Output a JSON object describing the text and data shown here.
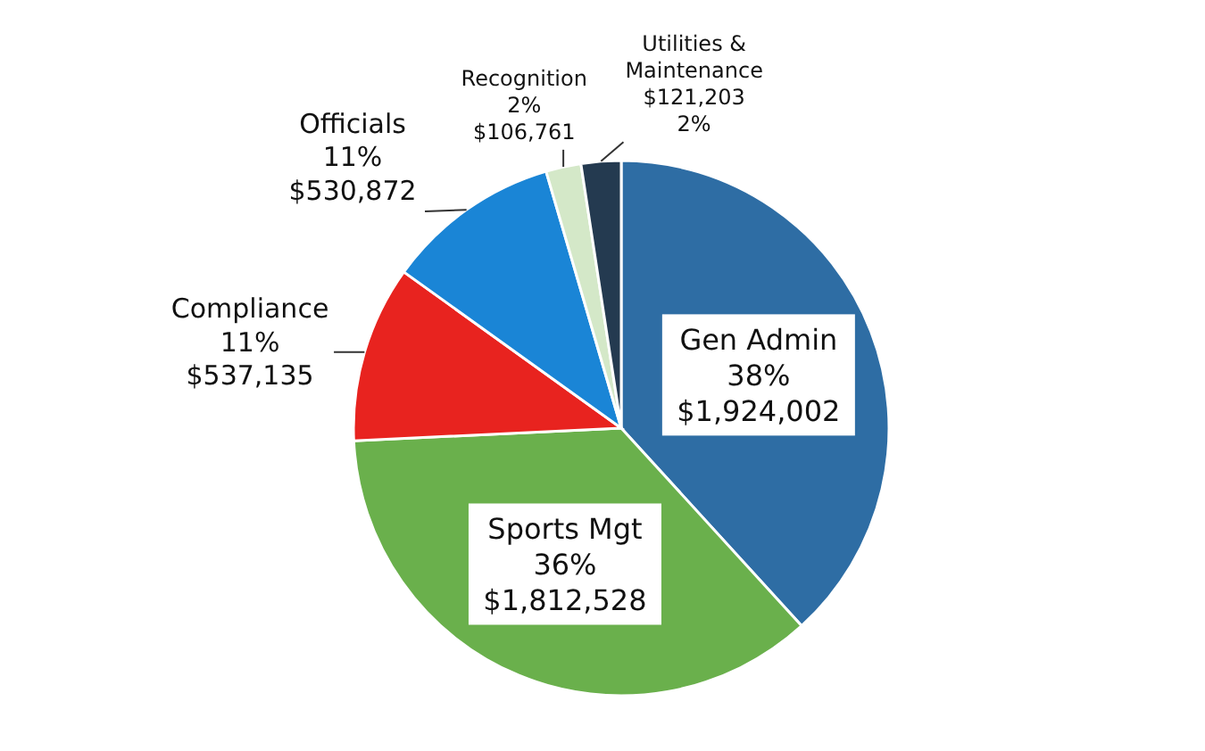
{
  "chart_data": {
    "type": "pie",
    "categories": [
      "Gen Admin",
      "Sports Mgt",
      "Compliance",
      "Officials",
      "Recognition",
      "Utilities & Maintenance"
    ],
    "values": [
      1924002,
      1812528,
      537135,
      530872,
      106761,
      121203
    ],
    "value_labels": [
      "38%\n$1,924,002",
      "36%\n$1,812,528",
      "11%\n$537,135",
      "11%\n$530,872",
      "2%\n$106,761",
      "$121,203\n2%"
    ],
    "colors": [
      "#2e6da4",
      "#6ab04c",
      "#e8231f",
      "#1a85d6",
      "#d4e8c8",
      "#243a50"
    ],
    "legend": false
  }
}
